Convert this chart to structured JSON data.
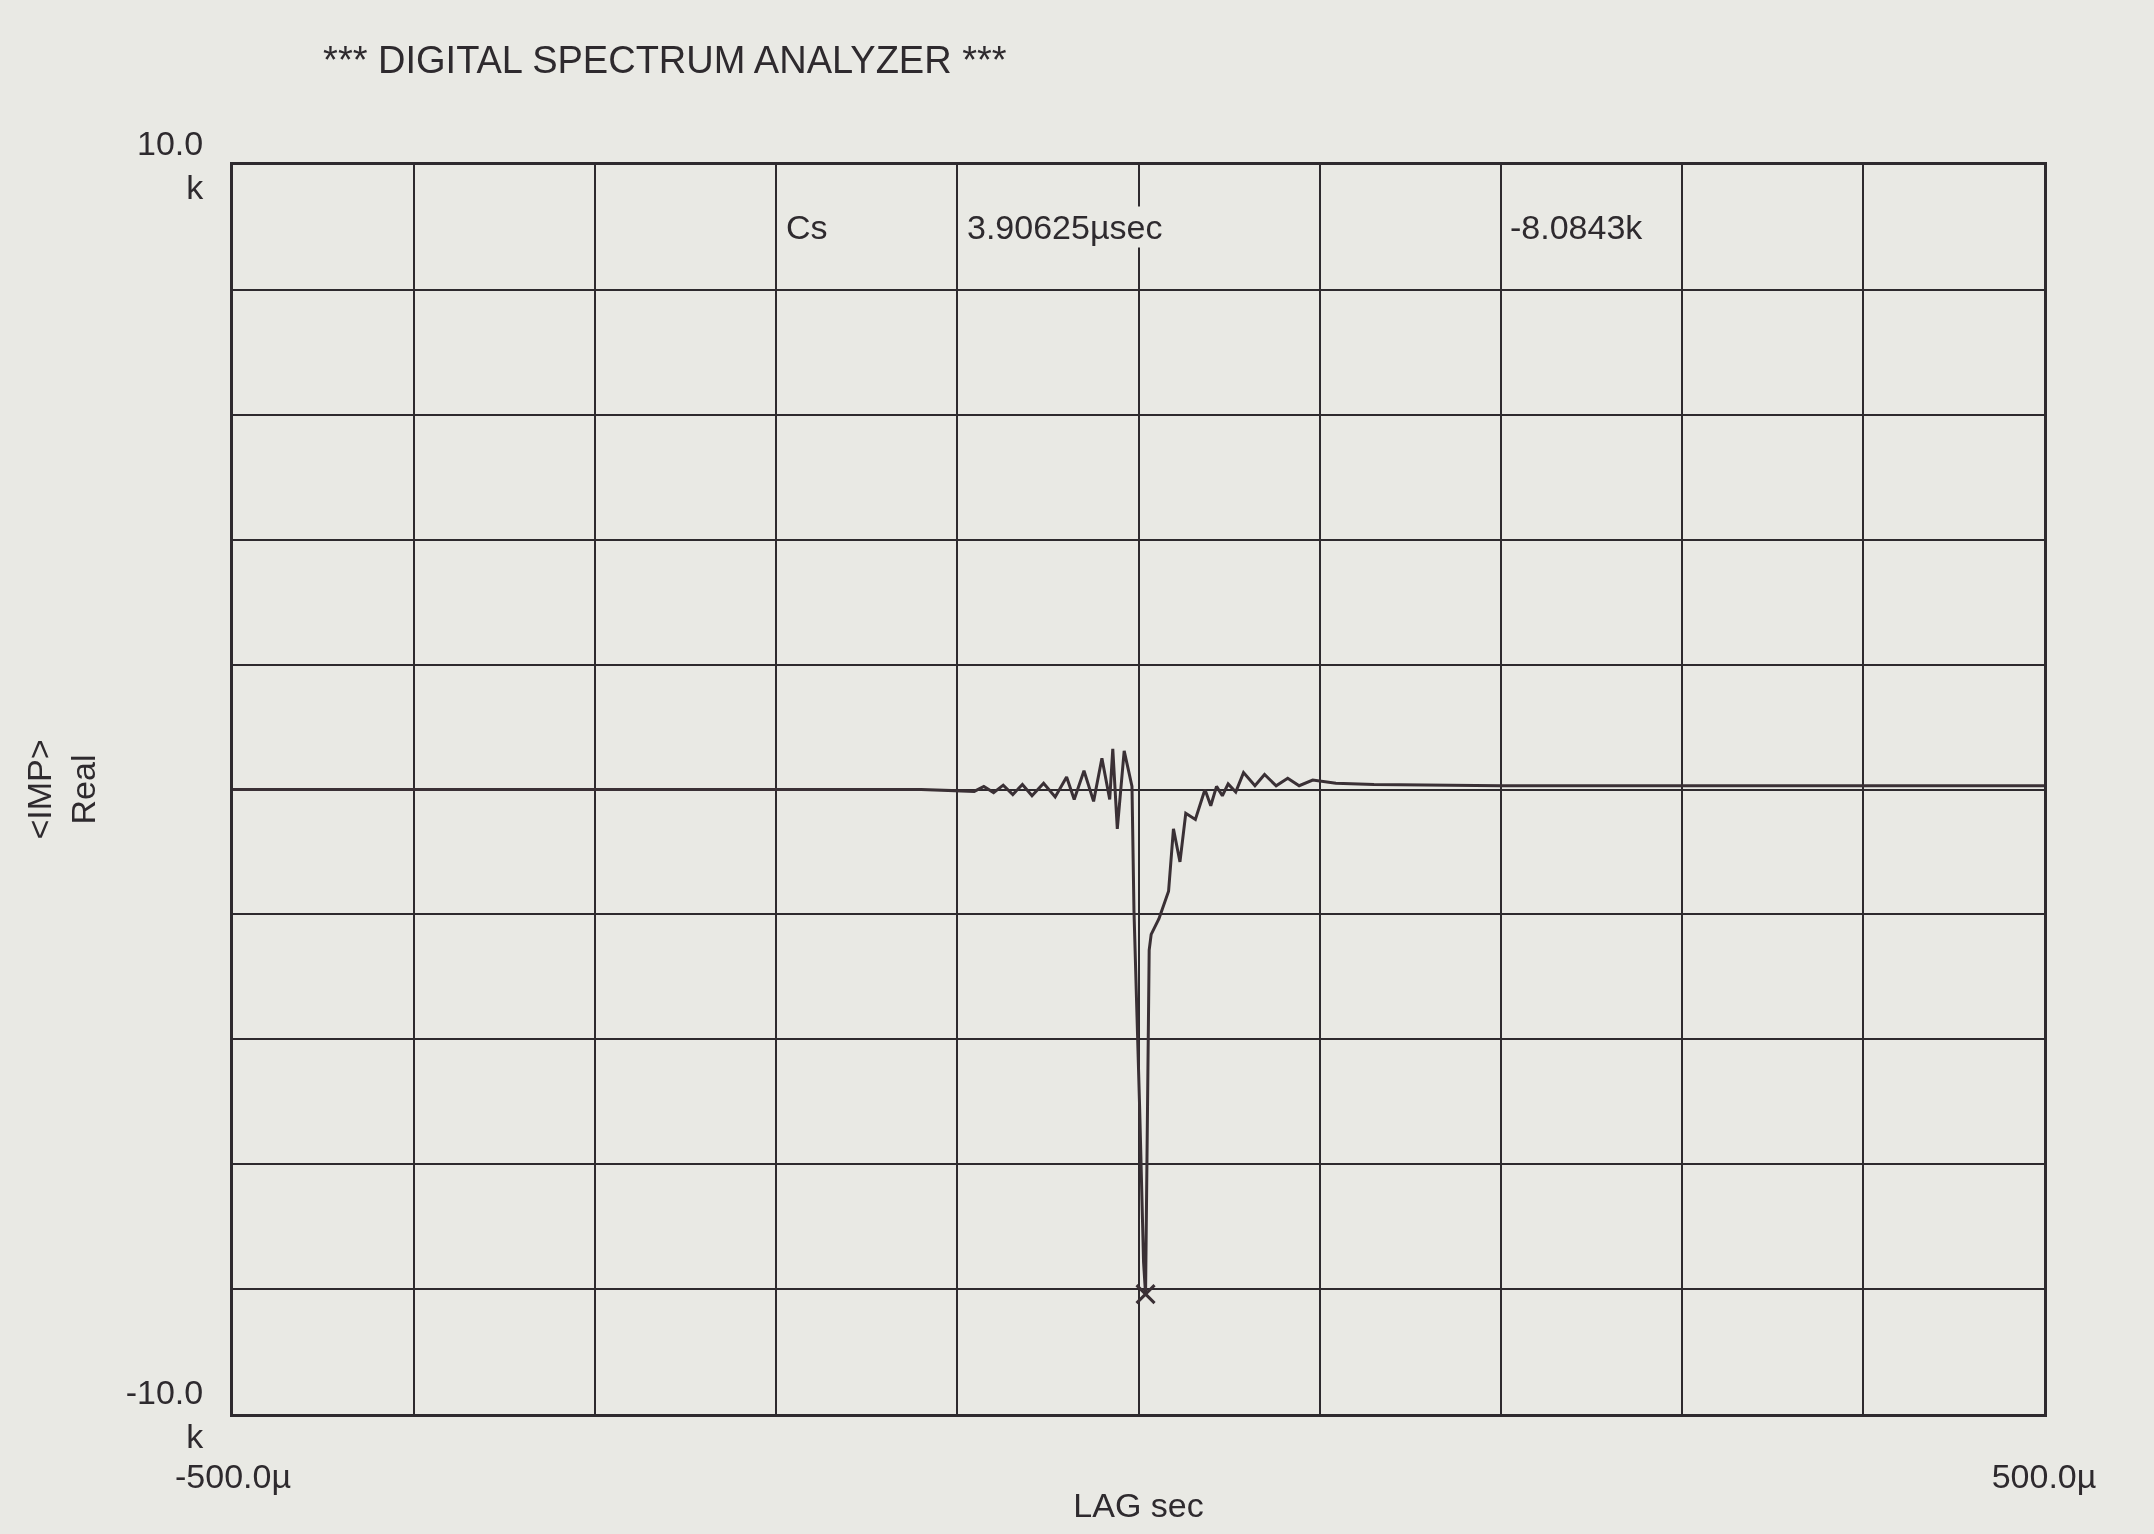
{
  "chart_data": {
    "type": "line",
    "title": "*** DIGITAL SPECTRUM ANALYZER ***",
    "xlabel": "LAG sec",
    "ylabel": "<IMP>\nReal",
    "annotations": [
      "Cs",
      "3.90625µsec",
      "-8.0843k"
    ],
    "xlim": [
      -500,
      500
    ],
    "xticks": [
      {
        "value": -500,
        "label": "-500.0µ"
      },
      {
        "value": -400,
        "label": null
      },
      {
        "value": -300,
        "label": null
      },
      {
        "value": -200,
        "label": null
      },
      {
        "value": -100,
        "label": null
      },
      {
        "value": 0,
        "label": null
      },
      {
        "value": 100,
        "label": null
      },
      {
        "value": 200,
        "label": null
      },
      {
        "value": 300,
        "label": null
      },
      {
        "value": 400,
        "label": null
      },
      {
        "value": 500,
        "label": "500.0µ"
      }
    ],
    "ylim": [
      -10,
      10
    ],
    "yticks": [
      {
        "value": -10,
        "label": "-10.0\nk"
      },
      {
        "value": -8,
        "label": null
      },
      {
        "value": -6,
        "label": null
      },
      {
        "value": -4,
        "label": null
      },
      {
        "value": -2,
        "label": null
      },
      {
        "value": 0,
        "label": null
      },
      {
        "value": 2,
        "label": null
      },
      {
        "value": 4,
        "label": null
      },
      {
        "value": 6,
        "label": null
      },
      {
        "value": 8,
        "label": null
      },
      {
        "value": 10,
        "label": "10.0\nk"
      }
    ],
    "grid": true,
    "line_style": "solid",
    "series": [
      {
        "color": "#3a3035",
        "marker": "none",
        "x": [
          -500,
          -300,
          -200,
          -120,
          -90.7,
          -85.4,
          -80,
          -74.7,
          -69.4,
          -64.1,
          -58.8,
          -52.4,
          -46,
          -39.7,
          -35.5,
          -30.1,
          -24.8,
          -20.2,
          -15.9,
          -14.2,
          -11.7,
          -7.9,
          -3.6,
          -2.5,
          0.6,
          2.8,
          3.9,
          5.9,
          7,
          11.3,
          16.6,
          19.3,
          22.9,
          26.1,
          31.4,
          36.7,
          39.9,
          43.1,
          46.3,
          49.5,
          53.7,
          58,
          64.3,
          69.6,
          76,
          82.4,
          88.7,
          96.2,
          109,
          130,
          200,
          300,
          400,
          500
        ],
        "values": [
          0,
          0,
          0,
          0,
          -0.03,
          0.05,
          -0.05,
          0.07,
          -0.08,
          0.08,
          -0.1,
          0.1,
          -0.12,
          0.2,
          -0.16,
          0.3,
          -0.19,
          0.5,
          -0.16,
          0.65,
          -0.63,
          0.62,
          0.05,
          -1.94,
          -5.07,
          -7.57,
          -8.08,
          -2.57,
          -2.32,
          -2.07,
          -1.63,
          -0.63,
          -1.16,
          -0.38,
          -0.48,
          0,
          -0.26,
          0.05,
          -0.1,
          0.09,
          -0.04,
          0.27,
          0.06,
          0.24,
          0.06,
          0.18,
          0.06,
          0.15,
          0.1,
          0.08,
          0.06,
          0.06,
          0.06,
          0.06
        ]
      },
      {
        "type": "scatter",
        "color": "#3a3035",
        "marker": "cross",
        "x": [
          3.9
        ],
        "values": [
          -8.08
        ]
      }
    ]
  }
}
